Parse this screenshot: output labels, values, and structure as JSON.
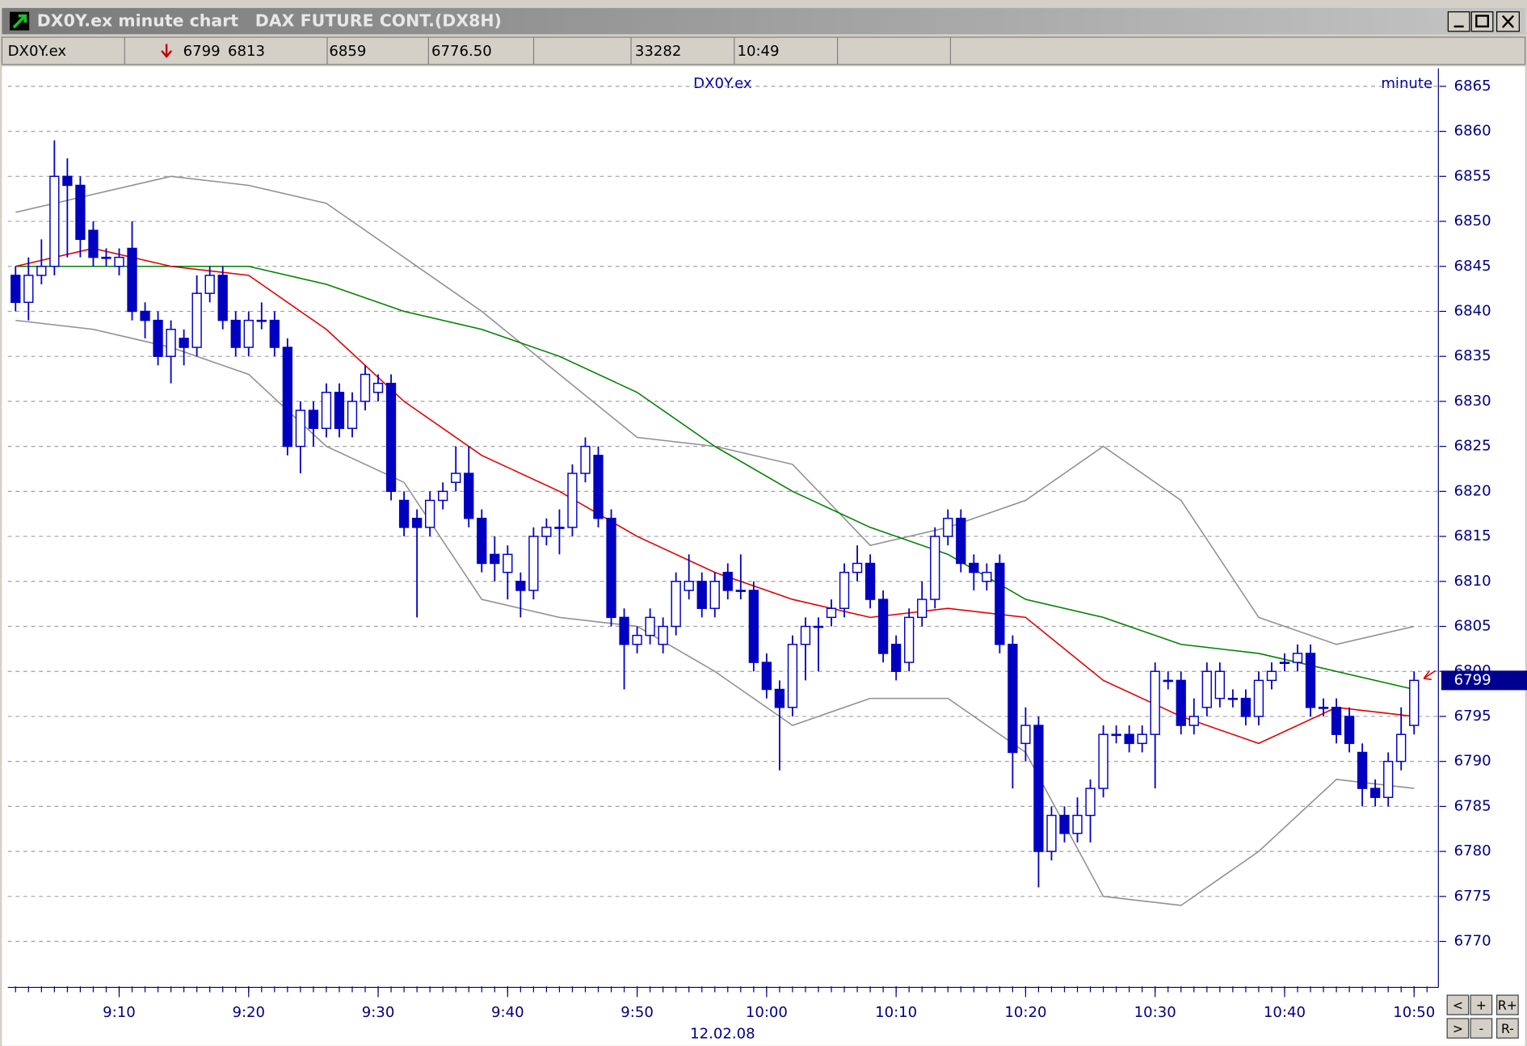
{
  "window": {
    "title": "DX0Y.ex minute chart",
    "subtitle": "DAX FUTURE CONT.(DX8H)"
  },
  "quote_bar": {
    "symbol": "DX0Y.ex",
    "last": "6799",
    "open": "6813",
    "high": "6859",
    "low": "6776.50",
    "volume": "33282",
    "time": "10:49"
  },
  "buttons": [
    "<",
    "+",
    "R+",
    ">",
    "-",
    "R-"
  ],
  "chart_data": {
    "type": "candlestick",
    "title": "DX0Y.ex",
    "interval": "minute",
    "date_label": "12.02.08",
    "last_price": 6799,
    "up_color": "#ffffff",
    "down_color": "#0000c0",
    "wick_color": "#0000c0",
    "open": [
      6844,
      6841,
      6844,
      6845,
      6855,
      6854,
      6849,
      6846,
      6845,
      6847,
      6840,
      6839,
      6835,
      6837,
      6836,
      6842,
      6844,
      6839,
      6836,
      6839,
      6839,
      6836,
      6825,
      6829,
      6827,
      6831,
      6827,
      6830,
      6831,
      6832,
      6819,
      6817,
      6816,
      6819,
      6821,
      6822,
      6817,
      6813,
      6811,
      6810,
      6809,
      6815,
      6816,
      6816,
      6822,
      6824,
      6817,
      6806,
      6803,
      6804,
      6803,
      6805,
      6809,
      6810,
      6807,
      6811,
      6809,
      6809,
      6801,
      6798,
      6796,
      6803,
      6805,
      6806,
      6807,
      6811,
      6812,
      6808,
      6803,
      6801,
      6806,
      6808,
      6815,
      6817,
      6812,
      6810,
      6812,
      6803,
      6792,
      6794,
      6780,
      6784,
      6782,
      6784,
      6787,
      6793,
      6793,
      6792,
      6793,
      6799,
      6799,
      6794,
      6796,
      6797,
      6797,
      6797,
      6795,
      6799,
      6801,
      6801,
      6802,
      6796,
      6796,
      6795,
      6791,
      6787,
      6786,
      6790,
      6794
    ],
    "high": [
      6845,
      6846,
      6848,
      6859,
      6857,
      6855,
      6850,
      6847,
      6847,
      6850,
      6841,
      6840,
      6839,
      6838,
      6844,
      6845,
      6845,
      6840,
      6840,
      6841,
      6840,
      6837,
      6830,
      6830,
      6832,
      6832,
      6831,
      6834,
      6833,
      6833,
      6820,
      6818,
      6820,
      6821,
      6825,
      6825,
      6818,
      6815,
      6814,
      6811,
      6816,
      6817,
      6818,
      6823,
      6826,
      6825,
      6818,
      6807,
      6805,
      6807,
      6806,
      6811,
      6813,
      6811,
      6811,
      6812,
      6813,
      6810,
      6802,
      6799,
      6804,
      6806,
      6806,
      6808,
      6812,
      6814,
      6813,
      6809,
      6804,
      6807,
      6810,
      6816,
      6818,
      6818,
      6813,
      6812,
      6813,
      6804,
      6796,
      6795,
      6785,
      6785,
      6786,
      6788,
      6794,
      6794,
      6794,
      6794,
      6801,
      6800,
      6800,
      6797,
      6801,
      6801,
      6798,
      6798,
      6800,
      6801,
      6802,
      6803,
      6803,
      6797,
      6797,
      6796,
      6792,
      6788,
      6791,
      6796,
      6800
    ],
    "low": [
      6840,
      6839,
      6843,
      6844,
      6846,
      6846,
      6845,
      6845,
      6844,
      6839,
      6837,
      6834,
      6832,
      6834,
      6835,
      6841,
      6838,
      6835,
      6835,
      6838,
      6835,
      6824,
      6822,
      6825,
      6826,
      6826,
      6826,
      6829,
      6830,
      6819,
      6815,
      6806,
      6815,
      6818,
      6820,
      6816,
      6811,
      6810,
      6808,
      6806,
      6808,
      6814,
      6813,
      6815,
      6821,
      6816,
      6805,
      6798,
      6802,
      6803,
      6802,
      6804,
      6808,
      6806,
      6806,
      6808,
      6808,
      6800,
      6797,
      6789,
      6795,
      6799,
      6800,
      6805,
      6806,
      6810,
      6807,
      6801,
      6799,
      6800,
      6805,
      6807,
      6814,
      6811,
      6809,
      6809,
      6802,
      6787,
      6790,
      6776,
      6779,
      6781,
      6781,
      6781,
      6786,
      6792,
      6791,
      6791,
      6787,
      6798,
      6793,
      6793,
      6795,
      6796,
      6796,
      6794,
      6794,
      6798,
      6800,
      6800,
      6795,
      6795,
      6792,
      6791,
      6785,
      6785,
      6785,
      6789,
      6793
    ],
    "close": [
      6841,
      6844,
      6845,
      6855,
      6854,
      6848,
      6846,
      6846,
      6846,
      6840,
      6839,
      6835,
      6838,
      6836,
      6842,
      6844,
      6839,
      6836,
      6839,
      6839,
      6836,
      6825,
      6829,
      6827,
      6831,
      6827,
      6830,
      6833,
      6832,
      6820,
      6816,
      6816,
      6819,
      6820,
      6822,
      6817,
      6812,
      6812,
      6813,
      6809,
      6815,
      6816,
      6816,
      6822,
      6825,
      6817,
      6806,
      6803,
      6804,
      6806,
      6805,
      6810,
      6810,
      6807,
      6810,
      6809,
      6809,
      6801,
      6798,
      6796,
      6803,
      6805,
      6805,
      6807,
      6811,
      6812,
      6808,
      6802,
      6800,
      6806,
      6808,
      6815,
      6817,
      6812,
      6811,
      6811,
      6803,
      6791,
      6794,
      6780,
      6784,
      6782,
      6784,
      6787,
      6793,
      6793,
      6792,
      6793,
      6800,
      6799,
      6794,
      6795,
      6800,
      6800,
      6797,
      6795,
      6799,
      6800,
      6801,
      6802,
      6796,
      6796,
      6793,
      6792,
      6787,
      6786,
      6790,
      6793,
      6799
    ],
    "indicators": [
      {
        "color": "#909090",
        "x": [
          0,
          6,
          12,
          18,
          24,
          30,
          36,
          42,
          48,
          54,
          60,
          66,
          72,
          78,
          84,
          90,
          96,
          102,
          108
        ],
        "values": [
          6851,
          6853,
          6855,
          6854,
          6852,
          6846,
          6840,
          6833,
          6826,
          6825,
          6823,
          6814,
          6816,
          6819,
          6825,
          6819,
          6806,
          6803,
          6805
        ]
      },
      {
        "color": "#909090",
        "x": [
          0,
          6,
          12,
          18,
          24,
          30,
          36,
          42,
          48,
          54,
          60,
          66,
          72,
          78,
          84,
          90,
          96,
          102,
          108
        ],
        "values": [
          6839,
          6838,
          6836,
          6833,
          6825,
          6821,
          6808,
          6806,
          6805,
          6800,
          6794,
          6797,
          6797,
          6791,
          6775,
          6774,
          6780,
          6788,
          6787
        ]
      },
      {
        "color": "#008000",
        "x": [
          0,
          6,
          12,
          18,
          24,
          30,
          36,
          42,
          48,
          54,
          60,
          66,
          72,
          78,
          84,
          90,
          96,
          102,
          108
        ],
        "values": [
          6845,
          6845,
          6845,
          6845,
          6843,
          6840,
          6838,
          6835,
          6831,
          6825,
          6820,
          6816,
          6813,
          6808,
          6806,
          6803,
          6802,
          6800,
          6798
        ]
      },
      {
        "color": "#e00000",
        "x": [
          0,
          6,
          12,
          18,
          24,
          30,
          36,
          42,
          48,
          54,
          60,
          66,
          72,
          78,
          84,
          90,
          96,
          102,
          108
        ],
        "values": [
          6845,
          6847,
          6845,
          6844,
          6838,
          6830,
          6824,
          6820,
          6815,
          6811,
          6808,
          6806,
          6807,
          6806,
          6799,
          6795,
          6792,
          6796,
          6795
        ]
      }
    ],
    "xlim": [
      -0.6,
      109.8
    ],
    "xticks": [
      {
        "value": 8,
        "label": "9:10"
      },
      {
        "value": 18,
        "label": "9:20"
      },
      {
        "value": 28,
        "label": "9:30"
      },
      {
        "value": 38,
        "label": "9:40"
      },
      {
        "value": 48,
        "label": "9:50"
      },
      {
        "value": 58,
        "label": "10:00"
      },
      {
        "value": 68,
        "label": "10:10"
      },
      {
        "value": 78,
        "label": "10:20"
      },
      {
        "value": 88,
        "label": "10:30"
      },
      {
        "value": 98,
        "label": "10:40"
      },
      {
        "value": 108,
        "label": "10:50"
      }
    ],
    "ylim": [
      6765,
      6867
    ],
    "yticks": [
      6770,
      6775,
      6780,
      6785,
      6790,
      6795,
      6800,
      6805,
      6810,
      6815,
      6820,
      6825,
      6830,
      6835,
      6840,
      6845,
      6850,
      6855,
      6860,
      6865
    ],
    "grid": true
  }
}
